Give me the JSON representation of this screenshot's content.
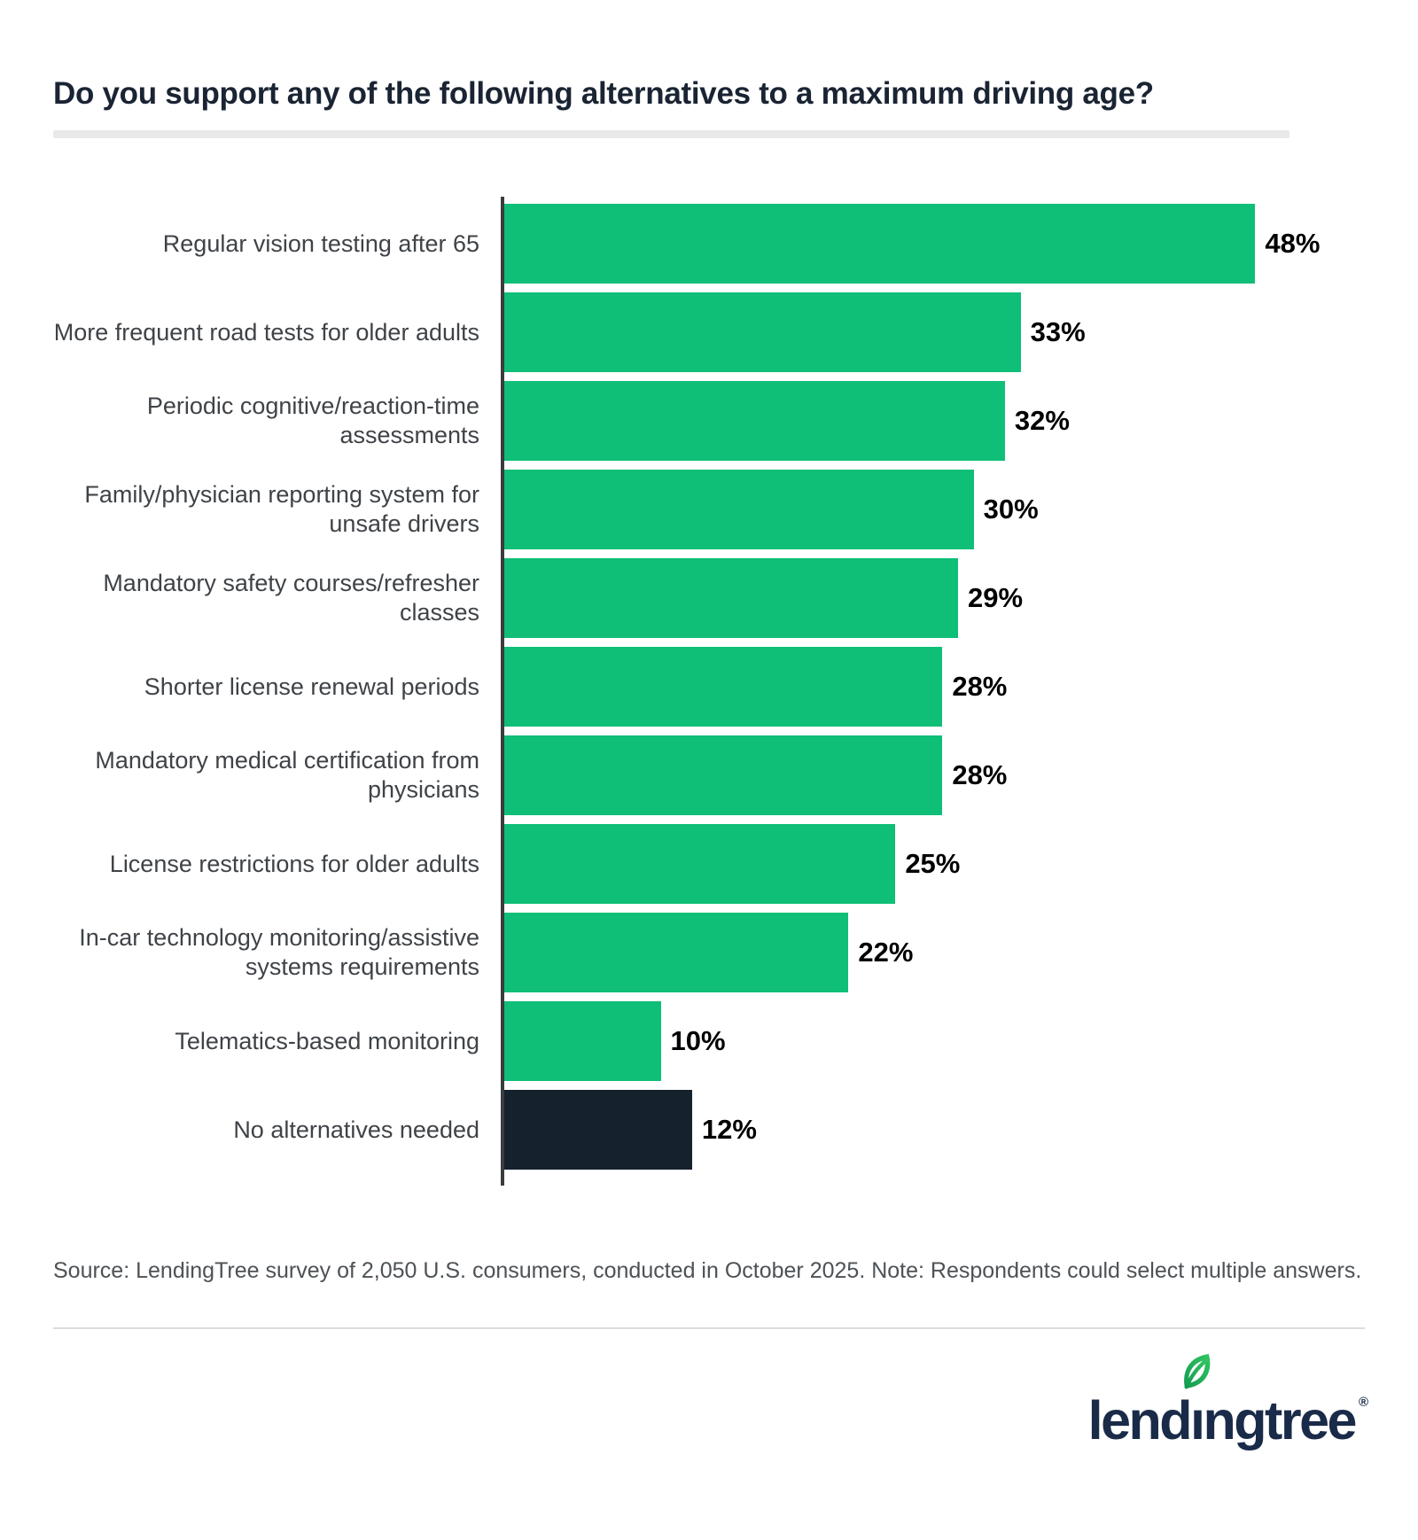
{
  "title": "Do you support any of the following alternatives to a maximum driving age?",
  "chart_data": {
    "type": "bar",
    "orientation": "horizontal",
    "title": "Do you support any of the following alternatives to a maximum driving age?",
    "categories": [
      "Regular vision testing after 65",
      "More frequent road tests for older adults",
      "Periodic cognitive/reaction-time assessments",
      "Family/physician reporting system for unsafe drivers",
      "Mandatory safety courses/refresher classes",
      "Shorter license renewal periods",
      "Mandatory medical certification from physicians",
      "License restrictions for older adults",
      "In-car technology monitoring/assistive systems requirements",
      "Telematics-based monitoring",
      "No alternatives needed"
    ],
    "values": [
      48,
      33,
      32,
      30,
      29,
      28,
      28,
      25,
      22,
      10,
      12
    ],
    "value_labels": [
      "48%",
      "33%",
      "32%",
      "30%",
      "29%",
      "28%",
      "28%",
      "25%",
      "22%",
      "10%",
      "12%"
    ],
    "bar_colors": [
      "#0FBE77",
      "#0FBE77",
      "#0FBE77",
      "#0FBE77",
      "#0FBE77",
      "#0FBE77",
      "#0FBE77",
      "#0FBE77",
      "#0FBE77",
      "#0FBE77",
      "#16212E"
    ],
    "xlabel": "",
    "ylabel": "",
    "xlim": [
      0,
      55
    ],
    "grid": false,
    "legend": false,
    "value_label_position": "outside-end"
  },
  "source_note": "Source: LendingTree survey of 2,050 U.S. consumers, conducted in October 2025. Note: Respondents could select multiple answers.",
  "footer": {
    "logo": {
      "pre": "lend",
      "i": "ı",
      "post": "ngtree",
      "reg": "®",
      "full_text": "lendingtree"
    }
  },
  "colors": {
    "bar_green": "#0FBE77",
    "bar_dark_navy": "#16212E",
    "title_navy": "#1A2433",
    "category_label_gray": "#3F4347",
    "value_label_black": "#000000",
    "axis_line": "#3A3C3E",
    "title_divider": "#E9E9EA",
    "footer_divider": "#DCDCDC",
    "source_gray": "#4D5256",
    "logo_navy": "#1A2B49",
    "leaf_green_light": "#33C561",
    "leaf_green_dark": "#129C52"
  }
}
